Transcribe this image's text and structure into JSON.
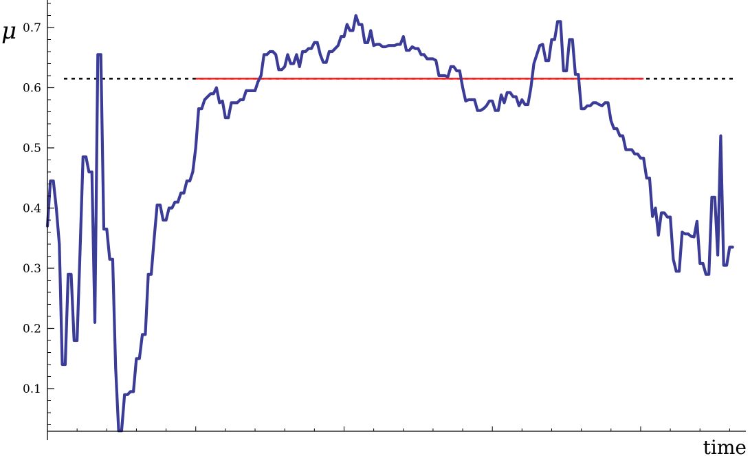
{
  "chart_data": {
    "type": "line",
    "ylabel": "μ",
    "xlabel": "time",
    "ylim": [
      0.03,
      0.75
    ],
    "xlim": [
      0,
      232
    ],
    "yticks": [
      0.1,
      0.2,
      0.3,
      0.4,
      0.5,
      0.6,
      0.7
    ],
    "ytick_labels": [
      "0.1",
      "0.2",
      "0.3",
      "0.4",
      "0.5",
      "0.6",
      "0.7"
    ],
    "grid": false,
    "colors": {
      "series": "#3b3b98",
      "reference_line": "#ff1a1a",
      "threshold": "#000000"
    },
    "threshold": {
      "y": 0.615,
      "style": "dotted",
      "x_range": [
        0,
        232
      ]
    },
    "reference_line": {
      "y": 0.615,
      "x_range": [
        50,
        201
      ]
    },
    "series": [
      {
        "values": [
          [
            0,
            0.37
          ],
          [
            1,
            0.445
          ],
          [
            2,
            0.445
          ],
          [
            3,
            0.4
          ],
          [
            4,
            0.34
          ],
          [
            5,
            0.14
          ],
          [
            6,
            0.14
          ],
          [
            7,
            0.29
          ],
          [
            8,
            0.29
          ],
          [
            9,
            0.18
          ],
          [
            10,
            0.18
          ],
          [
            11,
            0.33
          ],
          [
            12,
            0.485
          ],
          [
            13,
            0.485
          ],
          [
            14,
            0.46
          ],
          [
            15,
            0.46
          ],
          [
            16,
            0.21
          ],
          [
            17,
            0.655
          ],
          [
            18,
            0.655
          ],
          [
            19,
            0.365
          ],
          [
            20,
            0.365
          ],
          [
            21,
            0.315
          ],
          [
            22,
            0.315
          ],
          [
            23,
            0.135
          ],
          [
            24,
            0.03
          ],
          [
            25,
            0.03
          ],
          [
            26,
            0.09
          ],
          [
            27,
            0.09
          ],
          [
            28,
            0.095
          ],
          [
            29,
            0.095
          ],
          [
            30,
            0.15
          ],
          [
            31,
            0.15
          ],
          [
            32,
            0.19
          ],
          [
            33,
            0.19
          ],
          [
            34,
            0.29
          ],
          [
            35,
            0.29
          ],
          [
            36,
            0.35
          ],
          [
            37,
            0.405
          ],
          [
            38,
            0.405
          ],
          [
            39,
            0.38
          ],
          [
            40,
            0.38
          ],
          [
            41,
            0.4
          ],
          [
            42,
            0.4
          ],
          [
            43,
            0.41
          ],
          [
            44,
            0.41
          ],
          [
            45,
            0.425
          ],
          [
            46,
            0.425
          ],
          [
            47,
            0.445
          ],
          [
            48,
            0.445
          ],
          [
            49,
            0.46
          ],
          [
            50,
            0.5
          ],
          [
            51,
            0.565
          ],
          [
            52,
            0.565
          ],
          [
            53,
            0.58
          ],
          [
            54,
            0.585
          ],
          [
            55,
            0.59
          ],
          [
            56,
            0.59
          ],
          [
            57,
            0.6
          ],
          [
            58,
            0.575
          ],
          [
            59,
            0.578
          ],
          [
            60,
            0.55
          ],
          [
            61,
            0.55
          ],
          [
            62,
            0.575
          ],
          [
            63,
            0.575
          ],
          [
            64,
            0.575
          ],
          [
            65,
            0.58
          ],
          [
            66,
            0.58
          ],
          [
            67,
            0.595
          ],
          [
            68,
            0.595
          ],
          [
            69,
            0.595
          ],
          [
            70,
            0.595
          ],
          [
            71,
            0.61
          ],
          [
            72,
            0.62
          ],
          [
            73,
            0.655
          ],
          [
            74,
            0.655
          ],
          [
            75,
            0.66
          ],
          [
            76,
            0.66
          ],
          [
            77,
            0.655
          ],
          [
            78,
            0.63
          ],
          [
            79,
            0.63
          ],
          [
            80,
            0.635
          ],
          [
            81,
            0.655
          ],
          [
            82,
            0.64
          ],
          [
            83,
            0.64
          ],
          [
            84,
            0.655
          ],
          [
            85,
            0.635
          ],
          [
            86,
            0.66
          ],
          [
            87,
            0.66
          ],
          [
            88,
            0.665
          ],
          [
            89,
            0.665
          ],
          [
            90,
            0.675
          ],
          [
            91,
            0.675
          ],
          [
            92,
            0.655
          ],
          [
            93,
            0.642
          ],
          [
            94,
            0.642
          ],
          [
            95,
            0.66
          ],
          [
            96,
            0.66
          ],
          [
            97,
            0.665
          ],
          [
            98,
            0.67
          ],
          [
            99,
            0.685
          ],
          [
            100,
            0.685
          ],
          [
            101,
            0.705
          ],
          [
            102,
            0.695
          ],
          [
            103,
            0.695
          ],
          [
            104,
            0.72
          ],
          [
            105,
            0.705
          ],
          [
            106,
            0.705
          ],
          [
            107,
            0.675
          ],
          [
            108,
            0.675
          ],
          [
            109,
            0.695
          ],
          [
            110,
            0.67
          ],
          [
            111,
            0.672
          ],
          [
            112,
            0.672
          ],
          [
            113,
            0.668
          ],
          [
            114,
            0.668
          ],
          [
            115,
            0.67
          ],
          [
            116,
            0.67
          ],
          [
            117,
            0.67
          ],
          [
            118,
            0.672
          ],
          [
            119,
            0.672
          ],
          [
            120,
            0.685
          ],
          [
            121,
            0.662
          ],
          [
            122,
            0.662
          ],
          [
            123,
            0.668
          ],
          [
            124,
            0.665
          ],
          [
            125,
            0.665
          ],
          [
            126,
            0.655
          ],
          [
            127,
            0.655
          ],
          [
            128,
            0.648
          ],
          [
            129,
            0.648
          ],
          [
            130,
            0.648
          ],
          [
            131,
            0.645
          ],
          [
            132,
            0.62
          ],
          [
            133,
            0.62
          ],
          [
            134,
            0.62
          ],
          [
            135,
            0.618
          ],
          [
            136,
            0.635
          ],
          [
            137,
            0.635
          ],
          [
            138,
            0.628
          ],
          [
            139,
            0.628
          ],
          [
            140,
            0.6
          ],
          [
            141,
            0.578
          ],
          [
            142,
            0.58
          ],
          [
            143,
            0.58
          ],
          [
            144,
            0.58
          ],
          [
            145,
            0.562
          ],
          [
            146,
            0.562
          ],
          [
            147,
            0.565
          ],
          [
            148,
            0.57
          ],
          [
            149,
            0.578
          ],
          [
            150,
            0.578
          ],
          [
            151,
            0.562
          ],
          [
            152,
            0.562
          ],
          [
            153,
            0.588
          ],
          [
            154,
            0.575
          ],
          [
            155,
            0.592
          ],
          [
            156,
            0.592
          ],
          [
            157,
            0.585
          ],
          [
            158,
            0.585
          ],
          [
            159,
            0.57
          ],
          [
            160,
            0.58
          ],
          [
            161,
            0.572
          ],
          [
            162,
            0.572
          ],
          [
            163,
            0.6
          ],
          [
            164,
            0.64
          ],
          [
            165,
            0.655
          ],
          [
            166,
            0.67
          ],
          [
            167,
            0.672
          ],
          [
            168,
            0.645
          ],
          [
            169,
            0.645
          ],
          [
            170,
            0.68
          ],
          [
            171,
            0.68
          ],
          [
            172,
            0.71
          ],
          [
            173,
            0.71
          ],
          [
            174,
            0.628
          ],
          [
            175,
            0.628
          ],
          [
            176,
            0.68
          ],
          [
            177,
            0.68
          ],
          [
            178,
            0.622
          ],
          [
            179,
            0.622
          ],
          [
            180,
            0.565
          ],
          [
            181,
            0.565
          ],
          [
            182,
            0.57
          ],
          [
            183,
            0.57
          ],
          [
            184,
            0.575
          ],
          [
            185,
            0.575
          ],
          [
            186,
            0.572
          ],
          [
            187,
            0.57
          ],
          [
            188,
            0.575
          ],
          [
            189,
            0.575
          ],
          [
            190,
            0.545
          ],
          [
            191,
            0.532
          ],
          [
            192,
            0.532
          ],
          [
            193,
            0.52
          ],
          [
            194,
            0.52
          ],
          [
            195,
            0.497
          ],
          [
            196,
            0.497
          ],
          [
            197,
            0.497
          ],
          [
            198,
            0.49
          ],
          [
            199,
            0.49
          ],
          [
            200,
            0.483
          ],
          [
            201,
            0.483
          ],
          [
            202,
            0.45
          ],
          [
            203,
            0.45
          ],
          [
            204,
            0.386
          ],
          [
            205,
            0.4
          ],
          [
            206,
            0.355
          ],
          [
            207,
            0.392
          ],
          [
            208,
            0.392
          ],
          [
            209,
            0.385
          ],
          [
            210,
            0.385
          ],
          [
            211,
            0.315
          ],
          [
            212,
            0.295
          ],
          [
            213,
            0.295
          ],
          [
            214,
            0.36
          ],
          [
            215,
            0.357
          ],
          [
            216,
            0.357
          ],
          [
            217,
            0.353
          ],
          [
            218,
            0.352
          ],
          [
            219,
            0.378
          ],
          [
            220,
            0.308
          ],
          [
            221,
            0.308
          ],
          [
            222,
            0.29
          ],
          [
            223,
            0.29
          ],
          [
            224,
            0.418
          ],
          [
            225,
            0.418
          ],
          [
            226,
            0.322
          ],
          [
            227,
            0.52
          ],
          [
            228,
            0.305
          ],
          [
            229,
            0.305
          ],
          [
            230,
            0.335
          ],
          [
            231,
            0.335
          ]
        ]
      }
    ]
  }
}
